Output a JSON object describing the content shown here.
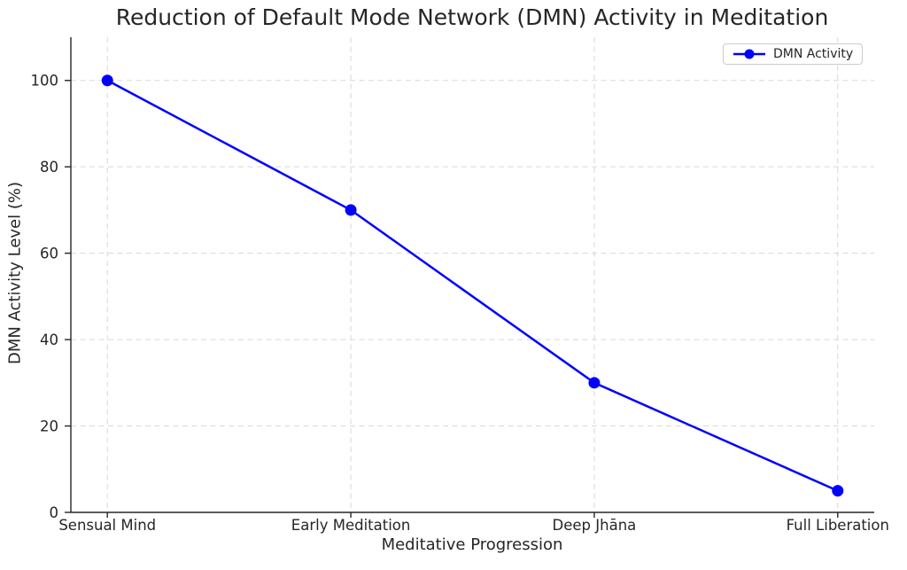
{
  "figure": {
    "background": "#ffffff",
    "text_color": "#262626"
  },
  "chart_data": {
    "type": "line",
    "title": "Reduction of Default Mode Network (DMN) Activity in Meditation",
    "xlabel": "Meditative Progression",
    "ylabel": "DMN Activity Level (%)",
    "categories": [
      "Sensual Mind",
      "Early Meditation",
      "Deep Jhāna",
      "Full Liberation"
    ],
    "series": [
      {
        "name": "DMN Activity",
        "values": [
          100,
          70,
          30,
          5
        ],
        "color": "#0000ff",
        "marker": "circle",
        "line_width": 2.5,
        "marker_radius": 6.5
      }
    ],
    "ylim": [
      0,
      110
    ],
    "yticks": [
      0,
      20,
      40,
      60,
      80,
      100
    ],
    "grid": true,
    "grid_color": "#d8d8d8",
    "grid_style": "dashed",
    "axis_color": "#262626",
    "legend": {
      "position": "upper right",
      "entries": [
        "DMN Activity"
      ]
    }
  }
}
